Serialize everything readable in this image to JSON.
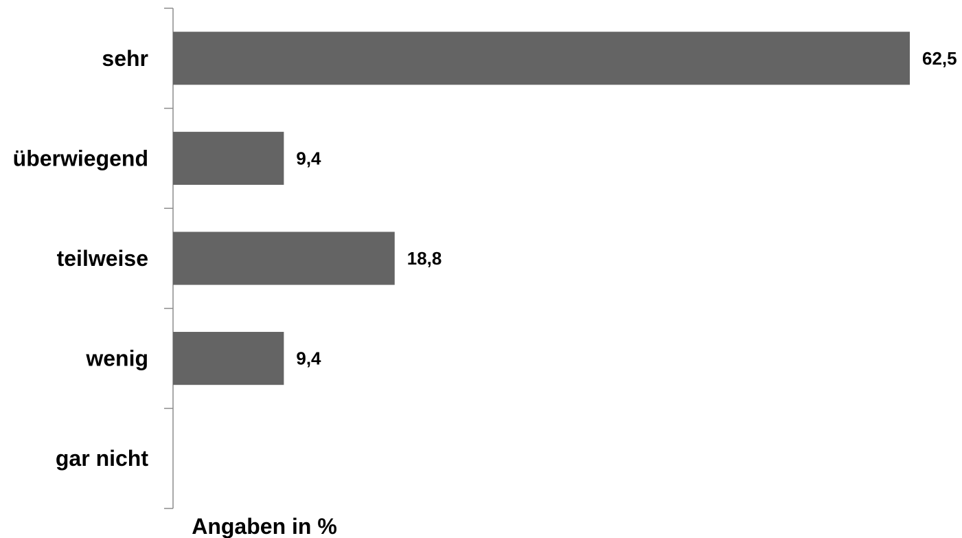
{
  "chart_data": {
    "type": "bar",
    "orientation": "horizontal",
    "categories": [
      "sehr",
      "überwiegend",
      "teilweise",
      "wenig",
      "gar nicht"
    ],
    "values": [
      62.5,
      9.4,
      18.8,
      9.4,
      0
    ],
    "data_labels": [
      "62,5",
      "9,4",
      "18,8",
      "9,4",
      ""
    ],
    "xlabel": "Angaben in %",
    "ylabel": "",
    "xlim": [
      0,
      62.5
    ],
    "grid": false,
    "legend": "none",
    "bar_color": "#646464"
  }
}
